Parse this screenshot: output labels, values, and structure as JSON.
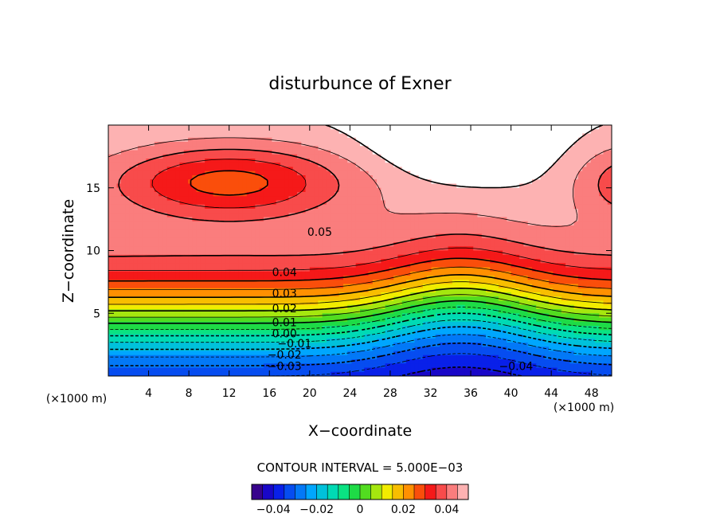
{
  "chart_data": {
    "type": "heatmap",
    "title": "disturbunce of Exner",
    "xlabel": "X−coordinate",
    "ylabel": "Z−coordinate",
    "x_unit": "(×1000 m)",
    "z_unit": "(×1000 m)",
    "xlim": [
      0,
      50
    ],
    "ylim": [
      0,
      20
    ],
    "x_ticks": [
      4,
      8,
      12,
      16,
      20,
      24,
      28,
      32,
      36,
      40,
      44,
      48
    ],
    "y_ticks": [
      5,
      10,
      15
    ],
    "contour_interval_text": "CONTOUR INTERVAL = 5.000E−03",
    "contour_labels": [
      {
        "text": "0.05",
        "x": 21,
        "y": 11.5
      },
      {
        "text": "0.04",
        "x": 17.5,
        "y": 8.3
      },
      {
        "text": "0.03",
        "x": 17.5,
        "y": 6.6
      },
      {
        "text": "0.02",
        "x": 17.5,
        "y": 5.4
      },
      {
        "text": "0.01",
        "x": 17.5,
        "y": 4.3
      },
      {
        "text": "0.00",
        "x": 17.5,
        "y": 3.4
      },
      {
        "text": "−0.01",
        "x": 18.5,
        "y": 2.6
      },
      {
        "text": "−0.02",
        "x": 17.5,
        "y": 1.7
      },
      {
        "text": "−0.03",
        "x": 17.5,
        "y": 0.8
      },
      {
        "text": "−0.04",
        "x": 40.5,
        "y": 0.8
      }
    ],
    "colorbar": {
      "range": [
        -0.05,
        0.05
      ],
      "ticks": [
        -0.04,
        -0.02,
        0,
        0.02,
        0.04
      ],
      "tick_labels": [
        "−0.04",
        "−0.02",
        "0",
        "0.02",
        "0.04"
      ]
    },
    "field_max": 0.053,
    "field_min": -0.045,
    "colors": {
      "background": "#ffffff",
      "axis": "#000000"
    }
  }
}
